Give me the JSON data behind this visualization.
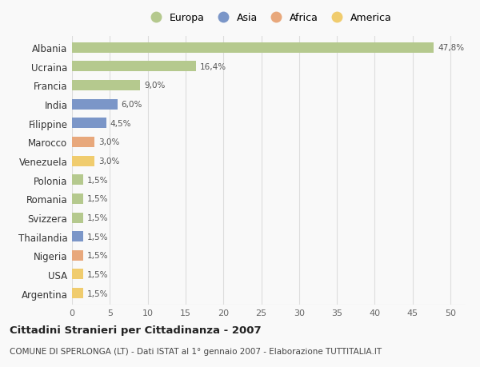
{
  "countries": [
    "Albania",
    "Ucraina",
    "Francia",
    "India",
    "Filippine",
    "Marocco",
    "Venezuela",
    "Polonia",
    "Romania",
    "Svizzera",
    "Thailandia",
    "Nigeria",
    "USA",
    "Argentina"
  ],
  "values": [
    47.8,
    16.4,
    9.0,
    6.0,
    4.5,
    3.0,
    3.0,
    1.5,
    1.5,
    1.5,
    1.5,
    1.5,
    1.5,
    1.5
  ],
  "labels": [
    "47,8%",
    "16,4%",
    "9,0%",
    "6,0%",
    "4,5%",
    "3,0%",
    "3,0%",
    "1,5%",
    "1,5%",
    "1,5%",
    "1,5%",
    "1,5%",
    "1,5%",
    "1,5%"
  ],
  "continents": [
    "Europa",
    "Europa",
    "Europa",
    "Asia",
    "Asia",
    "Africa",
    "America",
    "Europa",
    "Europa",
    "Europa",
    "Asia",
    "Africa",
    "America",
    "America"
  ],
  "continent_colors": {
    "Europa": "#b5c98e",
    "Asia": "#7b96c8",
    "Africa": "#e8a87c",
    "America": "#f0cc6e"
  },
  "legend_order": [
    "Europa",
    "Asia",
    "Africa",
    "America"
  ],
  "xlim": [
    0,
    52
  ],
  "xticks": [
    0,
    5,
    10,
    15,
    20,
    25,
    30,
    35,
    40,
    45,
    50
  ],
  "title": "Cittadini Stranieri per Cittadinanza - 2007",
  "subtitle": "COMUNE DI SPERLONGA (LT) - Dati ISTAT al 1° gennaio 2007 - Elaborazione TUTTITALIA.IT",
  "bg_color": "#f9f9f9",
  "grid_color": "#dddddd",
  "bar_height": 0.55
}
